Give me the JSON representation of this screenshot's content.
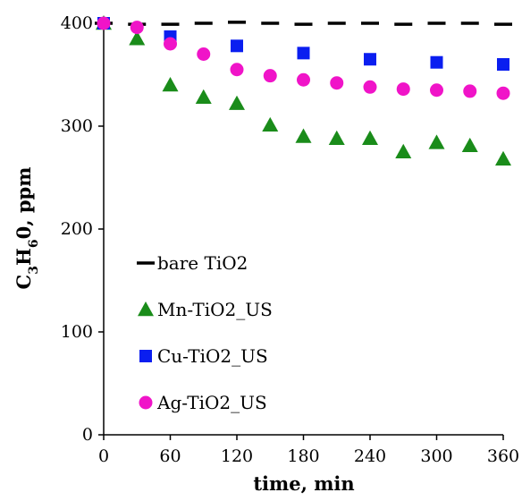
{
  "chart_data": {
    "type": "scatter",
    "title": "",
    "xlabel": "time, min",
    "ylabel": {
      "prefix": "C",
      "sub1": "3",
      "mid": "H",
      "sub2": "6",
      "suffix": "0, ppm"
    },
    "xlim": [
      0,
      360
    ],
    "ylim": [
      0,
      400
    ],
    "xticks": [
      "0",
      "60",
      "120",
      "180",
      "240",
      "300",
      "360"
    ],
    "yticks": [
      "0",
      "100",
      "200",
      "300",
      "400"
    ],
    "grid": false,
    "legend_placement": "center-left",
    "series": [
      {
        "name": "bare TiO2",
        "marker": "dash",
        "color": "#000000",
        "x": [
          0,
          30,
          60,
          90,
          120,
          150,
          180,
          210,
          240,
          270,
          300,
          330,
          360
        ],
        "y": [
          400,
          399,
          399,
          400,
          401,
          400,
          399,
          400,
          400,
          399,
          400,
          400,
          399
        ]
      },
      {
        "name": "Mn-TiO2_US",
        "marker": "triangle",
        "color": "#1a8c1a",
        "x": [
          0,
          30,
          60,
          90,
          120,
          150,
          180,
          210,
          240,
          270,
          300,
          330,
          360
        ],
        "y": [
          400,
          385,
          340,
          328,
          322,
          301,
          290,
          288,
          288,
          275,
          284,
          281,
          268
        ]
      },
      {
        "name": "Cu-TiO2_US",
        "marker": "square",
        "color": "#0a1ef0",
        "x": [
          0,
          60,
          120,
          180,
          240,
          300,
          360
        ],
        "y": [
          400,
          387,
          378,
          371,
          365,
          362,
          360
        ]
      },
      {
        "name": "Ag-TiO2_US",
        "marker": "circle",
        "color": "#f014c8",
        "x": [
          0,
          30,
          60,
          90,
          120,
          150,
          180,
          210,
          240,
          270,
          300,
          330,
          360
        ],
        "y": [
          400,
          396,
          380,
          370,
          355,
          349,
          345,
          342,
          338,
          336,
          335,
          334,
          332
        ]
      }
    ]
  }
}
